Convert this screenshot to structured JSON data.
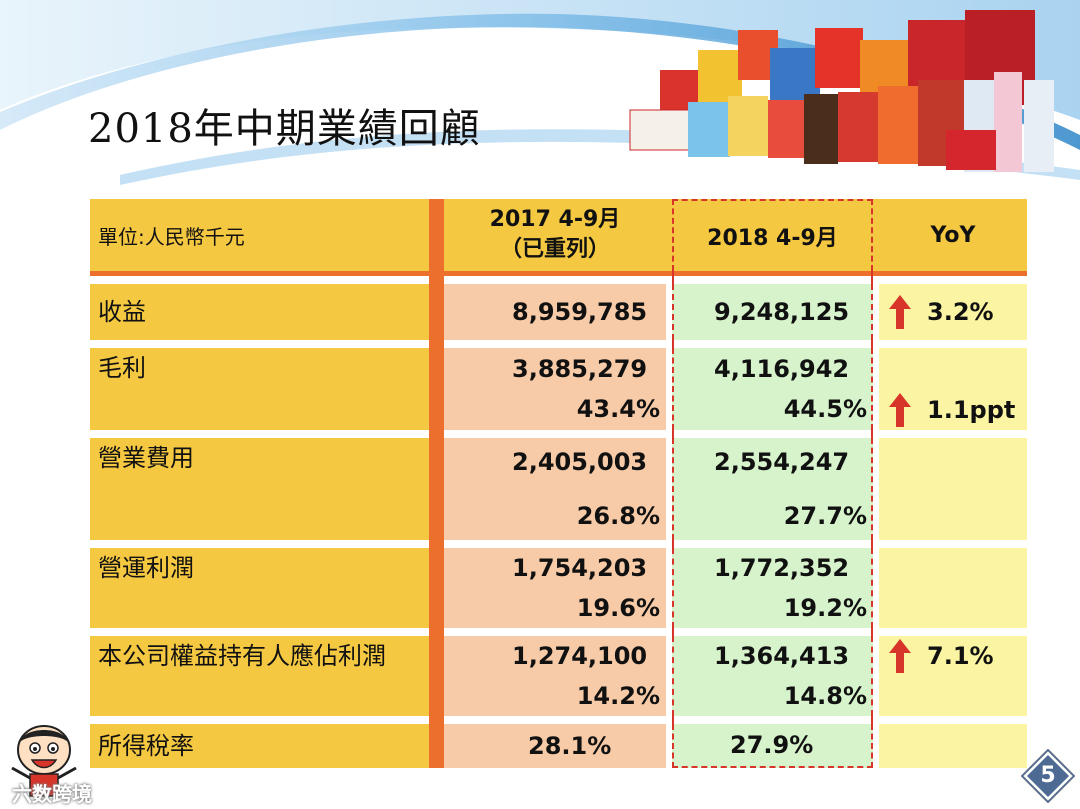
{
  "slide": {
    "title": "2018年中期業績回顧",
    "page_number": "5",
    "watermark": "六数跨境"
  },
  "table": {
    "header": {
      "unit": "單位:人民幣千元",
      "col_2017_line1": "2017 4-9月",
      "col_2017_line2": "（已重列）",
      "col_2018": "2018 4-9月",
      "col_yoy": "YoY"
    },
    "rows": [
      {
        "label": "收益",
        "v2017": "8,959,785",
        "p2017": "",
        "v2018": "9,248,125",
        "p2018": "",
        "yoy": "3.2%",
        "arrow": true
      },
      {
        "label": "毛利",
        "v2017": "3,885,279",
        "p2017": "43.4%",
        "v2018": "4,116,942",
        "p2018": "44.5%",
        "yoy": "1.1ppt",
        "arrow": true
      },
      {
        "label": "營業費用",
        "v2017": "2,405,003",
        "p2017": "26.8%",
        "v2018": "2,554,247",
        "p2018": "27.7%",
        "yoy": "",
        "arrow": false
      },
      {
        "label": "營運利潤",
        "v2017": "1,754,203",
        "p2017": "19.6%",
        "v2018": "1,772,352",
        "p2018": "19.2%",
        "yoy": "",
        "arrow": false
      },
      {
        "label": "本公司權益持有人應佔利潤",
        "v2017": "1,274,100",
        "p2017": "14.2%",
        "v2018": "1,364,413",
        "p2018": "14.8%",
        "yoy": "7.1%",
        "arrow": true
      },
      {
        "label": "所得稅率",
        "v2017": "28.1%",
        "p2017": "",
        "v2018": "27.9%",
        "p2018": "",
        "yoy": "",
        "arrow": false
      }
    ]
  },
  "colors": {
    "label_bg": "#f5c842",
    "bar": "#ec6f2d",
    "col2017_bg": "#f7cba7",
    "col2018_bg": "#d7f3cc",
    "yoy_bg": "#fbf5a3",
    "arrow": "#d8352a"
  },
  "icons": {
    "arrow": "up-arrow-icon",
    "mascot": "mascot-icon",
    "page": "diamond-badge-icon"
  }
}
